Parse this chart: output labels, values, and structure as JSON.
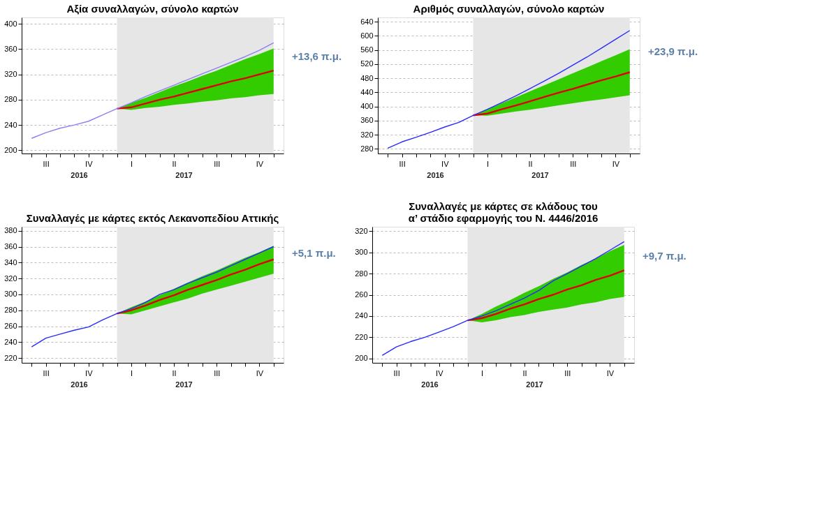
{
  "chart_data": [
    {
      "type": "line",
      "title": "Αξία συναλλαγών, σύνολο καρτών",
      "categories": [
        null,
        "III",
        null,
        null,
        "IV",
        null,
        null,
        "I",
        null,
        null,
        "II",
        null,
        null,
        "III",
        null,
        null,
        "IV",
        null
      ],
      "ylim": [
        195,
        410
      ],
      "yticks": [
        200,
        240,
        280,
        320,
        360,
        400
      ],
      "grid": "y",
      "series": [
        {
          "color": "#8a80f0",
          "values": [
            219,
            228,
            235,
            240,
            246,
            256,
            266,
            275,
            285,
            294,
            303,
            312,
            321,
            330,
            339,
            348,
            358,
            370
          ]
        },
        {
          "color": "#e00000",
          "values": [
            null,
            null,
            null,
            null,
            null,
            null,
            266,
            268,
            274,
            280,
            285,
            291,
            297,
            303,
            309,
            314,
            320,
            326
          ],
          "lower": [
            null,
            null,
            null,
            null,
            null,
            null,
            266,
            264,
            267,
            269,
            272,
            274,
            277,
            279,
            282,
            284,
            287,
            289
          ],
          "upper": [
            null,
            null,
            null,
            null,
            null,
            null,
            266,
            275,
            283,
            292,
            301,
            309,
            318,
            326,
            335,
            344,
            352,
            361
          ]
        }
      ],
      "annotations": [
        "+13,6 π.μ.",
        "2016",
        "2017"
      ]
    },
    {
      "type": "line",
      "title": "Αριθμός συναλλαγών, σύνολο καρτών",
      "categories": [
        null,
        "III",
        null,
        null,
        "IV",
        null,
        null,
        "I",
        null,
        null,
        "II",
        null,
        null,
        "III",
        null,
        null,
        "IV",
        null
      ],
      "ylim": [
        267,
        652
      ],
      "yticks": [
        280,
        320,
        360,
        400,
        440,
        480,
        520,
        560,
        600,
        640
      ],
      "grid": "y",
      "series": [
        {
          "color": "#2a2aff",
          "values": [
            282,
            300,
            313,
            327,
            342,
            355,
            375,
            392,
            411,
            430,
            451,
            472,
            494,
            517,
            540,
            565,
            590,
            615
          ]
        },
        {
          "color": "#e00000",
          "values": [
            null,
            null,
            null,
            null,
            null,
            null,
            375,
            380,
            392,
            403,
            415,
            427,
            439,
            450,
            462,
            474,
            485,
            497
          ],
          "lower": [
            null,
            null,
            null,
            null,
            null,
            null,
            375,
            374,
            380,
            386,
            391,
            397,
            403,
            409,
            415,
            420,
            426,
            432
          ],
          "upper": [
            null,
            null,
            null,
            null,
            null,
            null,
            375,
            392,
            409,
            426,
            443,
            460,
            477,
            494,
            511,
            528,
            545,
            562
          ]
        }
      ],
      "annotations": [
        "+23,9 π.μ.",
        "2016",
        "2017"
      ]
    },
    {
      "type": "line",
      "title": "Συναλλαγές με κάρτες εκτός Λεκανοπεδίου Αττικής",
      "categories": [
        null,
        "III",
        null,
        null,
        "IV",
        null,
        null,
        "I",
        null,
        null,
        "II",
        null,
        null,
        "III",
        null,
        null,
        "IV",
        null
      ],
      "ylim": [
        214,
        385
      ],
      "yticks": [
        220,
        240,
        260,
        280,
        300,
        320,
        340,
        360,
        380
      ],
      "grid": "y",
      "series": [
        {
          "color": "#2a2aff",
          "values": [
            234,
            245,
            250,
            255,
            259,
            268,
            276,
            282,
            290,
            300,
            306,
            314,
            321,
            328,
            336,
            344,
            352,
            360
          ]
        },
        {
          "color": "#e00000",
          "values": [
            null,
            null,
            null,
            null,
            null,
            null,
            276,
            280,
            286,
            293,
            299,
            306,
            312,
            318,
            325,
            331,
            338,
            344
          ],
          "lower": [
            null,
            null,
            null,
            null,
            null,
            null,
            276,
            275,
            280,
            285,
            290,
            295,
            301,
            306,
            311,
            316,
            321,
            326
          ],
          "upper": [
            null,
            null,
            null,
            null,
            null,
            null,
            276,
            284,
            291,
            299,
            307,
            315,
            323,
            330,
            338,
            346,
            353,
            361
          ]
        }
      ],
      "annotations": [
        "+5,1 π.μ.",
        "2016",
        "2017"
      ]
    },
    {
      "type": "line",
      "title": "Συναλλαγές με κάρτες σε κλάδους του\nα’ στάδιο εφαρμογής του Ν. 4446/2016",
      "categories": [
        null,
        "III",
        null,
        null,
        "IV",
        null,
        null,
        "I",
        null,
        null,
        "II",
        null,
        null,
        "III",
        null,
        null,
        "IV",
        null
      ],
      "ylim": [
        196,
        324
      ],
      "yticks": [
        200,
        220,
        240,
        260,
        280,
        300,
        320
      ],
      "grid": "y",
      "series": [
        {
          "color": "#2a2aff",
          "values": [
            203,
            211,
            216,
            220,
            225,
            230,
            236,
            240,
            245,
            251,
            257,
            264,
            273,
            280,
            287,
            294,
            302,
            310
          ]
        },
        {
          "color": "#e00000",
          "values": [
            null,
            null,
            null,
            null,
            null,
            null,
            236,
            238,
            242,
            247,
            251,
            256,
            260,
            265,
            269,
            274,
            278,
            283
          ],
          "lower": [
            null,
            null,
            null,
            null,
            null,
            null,
            236,
            234,
            236,
            239,
            241,
            244,
            246,
            248,
            251,
            253,
            256,
            258
          ],
          "upper": [
            null,
            null,
            null,
            null,
            null,
            null,
            236,
            242,
            249,
            255,
            262,
            268,
            275,
            281,
            288,
            294,
            301,
            307
          ]
        }
      ],
      "annotations": [
        "+9,7 π.μ.",
        "2016",
        "2017"
      ]
    }
  ]
}
